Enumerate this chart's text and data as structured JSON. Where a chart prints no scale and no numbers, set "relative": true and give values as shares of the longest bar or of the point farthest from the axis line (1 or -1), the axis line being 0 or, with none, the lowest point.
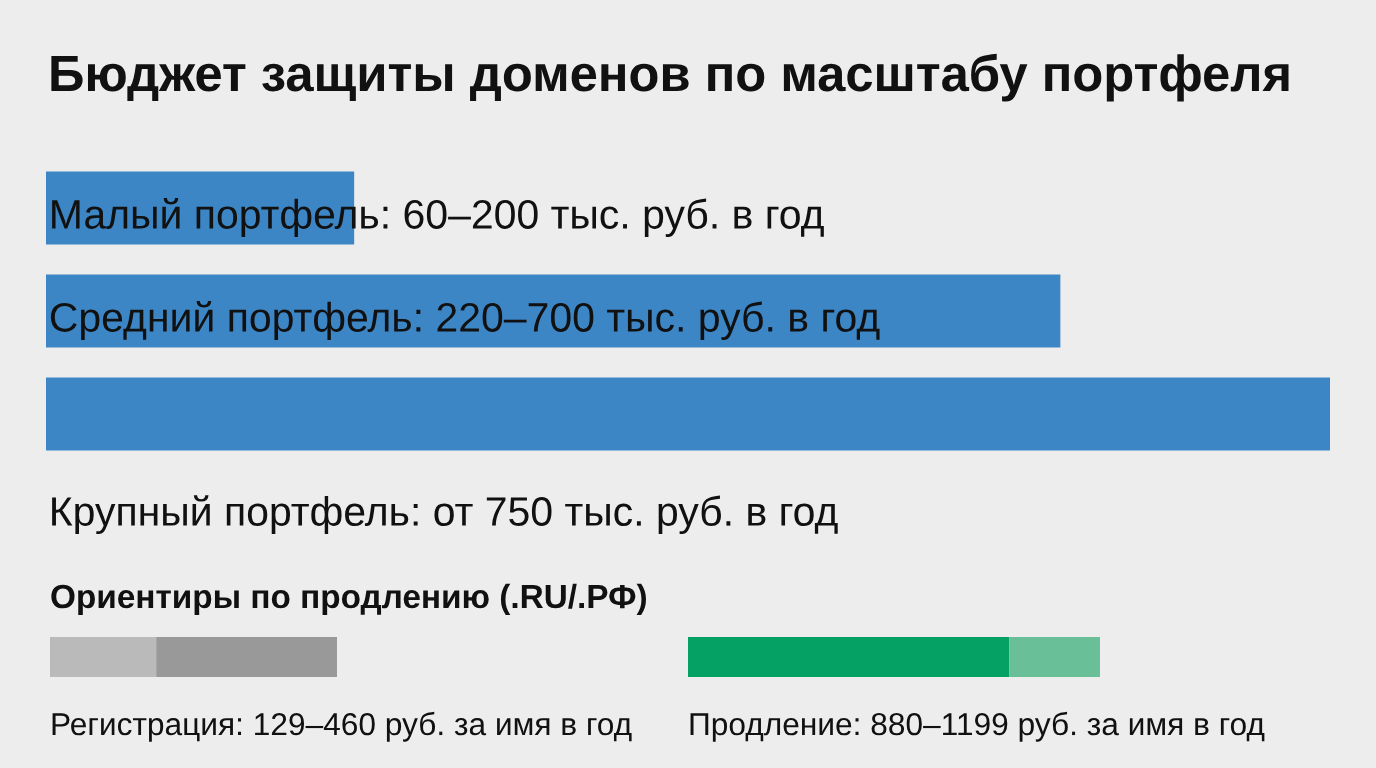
{
  "chart_data": [
    {
      "type": "bar",
      "orientation": "horizontal",
      "relative": true,
      "title": "Бюджет защиты доменов по масштабу портфеля",
      "categories": [
        null,
        null,
        null
      ],
      "annotations": [
        "Малый портфель: 60–200 тыс. руб. в год",
        "Средний портфель: 220–700 тыс. руб. в год",
        "Крупный портфель: от 750 тыс. руб. в год"
      ],
      "series": [
        {
          "color": "#3d86c6",
          "values": [
            0.24,
            0.79,
            1
          ]
        }
      ]
    },
    {
      "type": "bar",
      "orientation": "horizontal",
      "stacked": true,
      "relative": true,
      "title": "Ориентиры по продлению (.RU/.РФ)",
      "categories": [
        "Регистрация: 129–460 руб. за имя в год"
      ],
      "series": [
        {
          "color": "#bababa",
          "values": [
            0.37
          ]
        },
        {
          "color": "#999999",
          "values": [
            0.63
          ]
        }
      ]
    },
    {
      "type": "bar",
      "orientation": "horizontal",
      "stacked": true,
      "relative": true,
      "categories": [
        "Продление: 880–1199 руб. за имя в год"
      ],
      "series": [
        {
          "color": "#05a064",
          "values": [
            0.78
          ]
        },
        {
          "color": "#68bf98",
          "values": [
            0.22
          ]
        }
      ]
    }
  ]
}
